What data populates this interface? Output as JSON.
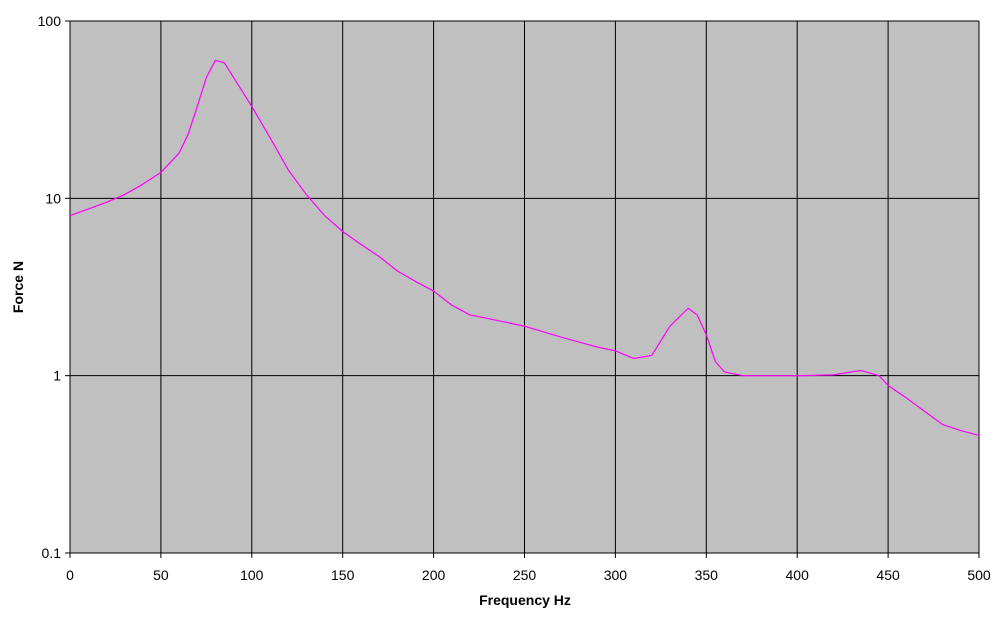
{
  "chart_data": {
    "type": "line",
    "x_label": "Frequency Hz",
    "y_label": "Force N",
    "x": [
      0,
      10,
      20,
      30,
      40,
      50,
      60,
      65,
      70,
      75,
      80,
      85,
      90,
      100,
      110,
      120,
      130,
      140,
      150,
      160,
      170,
      180,
      190,
      200,
      210,
      220,
      230,
      250,
      270,
      290,
      300,
      310,
      320,
      330,
      340,
      345,
      350,
      355,
      360,
      370,
      400,
      420,
      435,
      445,
      450,
      460,
      470,
      480,
      490,
      500
    ],
    "series": [
      {
        "color": "#ff00ff",
        "values": [
          8,
          8.7,
          9.5,
          10.5,
          12,
          14,
          18,
          23,
          33,
          48,
          60,
          58,
          48,
          33,
          22,
          14.5,
          10.5,
          8,
          6.5,
          5.5,
          4.7,
          3.9,
          3.4,
          3.0,
          2.5,
          2.2,
          2.1,
          1.9,
          1.65,
          1.45,
          1.38,
          1.25,
          1.3,
          1.9,
          2.4,
          2.2,
          1.7,
          1.2,
          1.05,
          1.0,
          1.0,
          1.01,
          1.07,
          1.0,
          0.88,
          0.75,
          0.63,
          0.53,
          0.49,
          0.46
        ]
      }
    ],
    "xlim": [
      0,
      500
    ],
    "xticks": [
      0,
      50,
      100,
      150,
      200,
      250,
      300,
      350,
      400,
      450,
      500
    ],
    "ylim": [
      0.1,
      100
    ],
    "yticks": [
      0.1,
      1,
      10,
      100
    ],
    "log_y": true,
    "grid": true,
    "plot_background": "#c0c0c0"
  }
}
